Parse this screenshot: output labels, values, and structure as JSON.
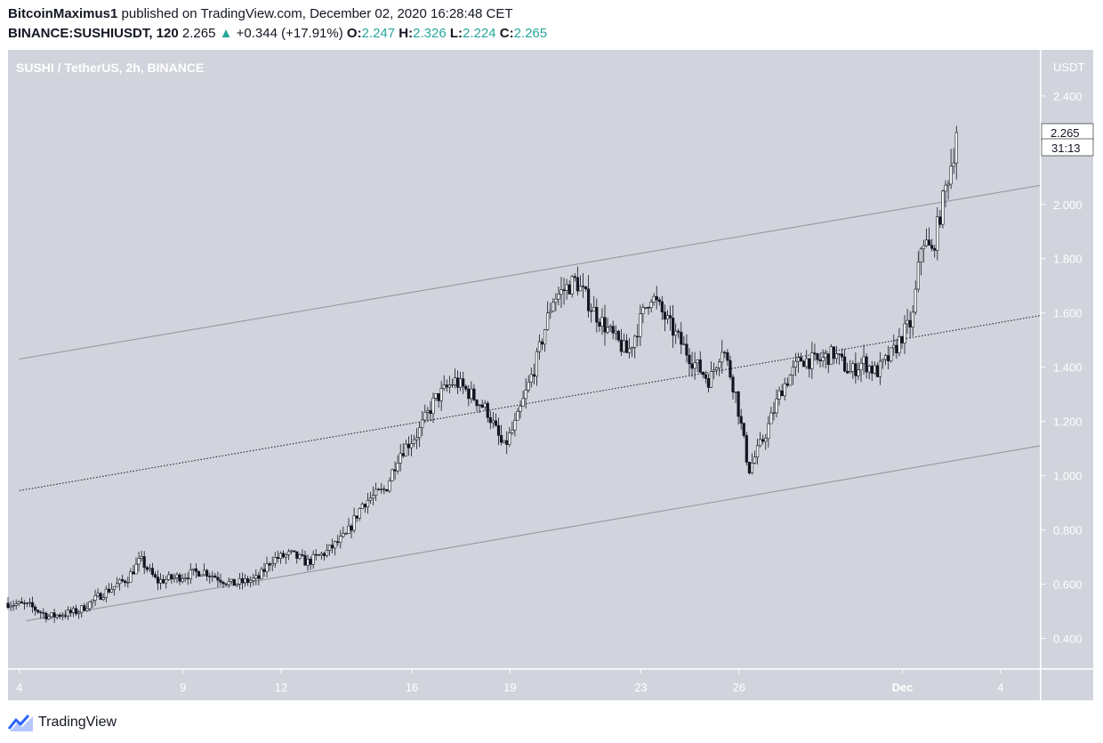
{
  "header": {
    "author": "BitcoinMaximus1",
    "published_text": "published on TradingView.com, December 02, 2020 16:28:48 CET",
    "symbol": "BINANCE:SUSHIUSDT, 120",
    "price": "2.265",
    "change": "+0.344 (+17.91%)",
    "o_label": "O:",
    "o_value": "2.247",
    "h_label": "H:",
    "h_value": "2.326",
    "l_label": "L:",
    "l_value": "2.224",
    "c_label": "C:",
    "c_value": "2.265"
  },
  "chart_data": {
    "type": "candlestick",
    "title": "SUSHI / TetherUS, 2h, BINANCE",
    "currency_label": "USDT",
    "last_price": "2.265",
    "countdown": "31:13",
    "ylim": [
      0.29,
      2.57
    ],
    "y_ticks": [
      "0.400",
      "0.600",
      "0.800",
      "1.000",
      "1.200",
      "1.400",
      "1.600",
      "1.800",
      "2.000",
      "2.400"
    ],
    "x_ticks": [
      "4",
      "9",
      "12",
      "16",
      "19",
      "23",
      "26",
      "Dec",
      "4"
    ],
    "x_tick_days": [
      4,
      9,
      12,
      16,
      19,
      23,
      26,
      31,
      34
    ],
    "x_range_days": [
      3.65,
      35.2
    ],
    "price_path_days": [
      3.65,
      4.3,
      4.9,
      5.8,
      6.6,
      7.3,
      7.7,
      8.2,
      9.0,
      9.6,
      10.5,
      11.3,
      11.7,
      12.3,
      12.8,
      13.4,
      14.0,
      14.5,
      15.2,
      15.6,
      16.2,
      16.7,
      17.3,
      17.8,
      18.3,
      18.8,
      19.2,
      19.8,
      20.3,
      21.0,
      21.6,
      22.1,
      22.6,
      23.3,
      23.9,
      24.6,
      25.1,
      25.5,
      25.9,
      26.3,
      26.8,
      27.3,
      27.9,
      28.4,
      28.9,
      29.4,
      29.8,
      30.2,
      30.7,
      31.0,
      31.3,
      31.6,
      31.9,
      32.3,
      32.7
    ],
    "price_path_close": [
      0.53,
      0.52,
      0.48,
      0.5,
      0.57,
      0.62,
      0.69,
      0.61,
      0.63,
      0.65,
      0.6,
      0.62,
      0.69,
      0.71,
      0.68,
      0.72,
      0.78,
      0.9,
      0.95,
      1.08,
      1.16,
      1.28,
      1.35,
      1.3,
      1.24,
      1.1,
      1.2,
      1.42,
      1.65,
      1.72,
      1.6,
      1.52,
      1.45,
      1.67,
      1.55,
      1.42,
      1.35,
      1.48,
      1.3,
      1.02,
      1.15,
      1.32,
      1.43,
      1.42,
      1.45,
      1.38,
      1.42,
      1.38,
      1.45,
      1.52,
      1.57,
      1.88,
      1.82,
      2.05,
      2.265
    ],
    "channel_upper": {
      "day_start": 4.0,
      "value_start": 1.43,
      "day_end": 35.2,
      "value_end": 2.07
    },
    "channel_mid": {
      "day_start": 4.0,
      "value_start": 0.945,
      "day_end": 35.2,
      "value_end": 1.59
    },
    "channel_lower": {
      "day_start": 4.2,
      "value_start": 0.465,
      "day_end": 35.2,
      "value_end": 1.11
    }
  },
  "footer": {
    "brand": "TradingView"
  },
  "colors": {
    "plot_bg": "#d1d4dc",
    "axis_bg": "#d1d4dc",
    "candle": "#131722",
    "channel": "#9598a1",
    "axis_text": "#ffffff",
    "accent": "#26a69a"
  }
}
